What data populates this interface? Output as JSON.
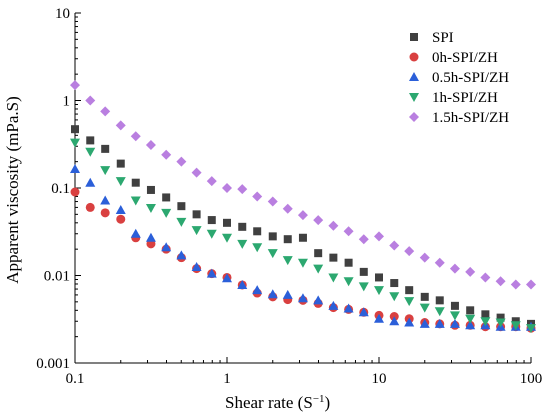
{
  "chart_data": {
    "type": "scatter",
    "xscale": "log",
    "yscale": "log",
    "xlim": [
      0.1,
      100
    ],
    "ylim": [
      0.001,
      10
    ],
    "xlabel": "Shear rate (S",
    "xlabel_sup": "−1",
    "xlabel_close": ")",
    "ylabel": "Apparent viscosity (mPa.S)",
    "xticks": [
      {
        "value": 0.1,
        "label": "0.1"
      },
      {
        "value": 1,
        "label": "1"
      },
      {
        "value": 10,
        "label": "10"
      },
      {
        "value": 100,
        "label": "100"
      }
    ],
    "yticks": [
      {
        "value": 0.001,
        "label": "0.001"
      },
      {
        "value": 0.01,
        "label": "0.01"
      },
      {
        "value": 0.1,
        "label": "0.1"
      },
      {
        "value": 1,
        "label": "1"
      },
      {
        "value": 10,
        "label": "10"
      }
    ],
    "legend_position": "top-right",
    "grid": false,
    "series": [
      {
        "name": "SPI",
        "marker": "square",
        "color": "#404040",
        "x": [
          0.1,
          0.126,
          0.158,
          0.2,
          0.251,
          0.316,
          0.398,
          0.501,
          0.631,
          0.794,
          1.0,
          1.26,
          1.58,
          2.0,
          2.51,
          3.16,
          3.98,
          5.01,
          6.31,
          7.94,
          10.0,
          12.6,
          15.8,
          20.0,
          25.1,
          31.6,
          39.8,
          50.1,
          63.1,
          79.4,
          100
        ],
        "y": [
          0.47,
          0.35,
          0.28,
          0.19,
          0.115,
          0.095,
          0.078,
          0.062,
          0.05,
          0.043,
          0.04,
          0.036,
          0.032,
          0.028,
          0.026,
          0.027,
          0.018,
          0.016,
          0.014,
          0.011,
          0.0095,
          0.0082,
          0.0068,
          0.0057,
          0.0052,
          0.0045,
          0.004,
          0.0036,
          0.0033,
          0.003,
          0.0028
        ]
      },
      {
        "name": "0h-SPI/ZH",
        "marker": "circle",
        "color": "#d94040",
        "x": [
          0.1,
          0.126,
          0.158,
          0.2,
          0.251,
          0.316,
          0.398,
          0.501,
          0.631,
          0.794,
          1.0,
          1.26,
          1.58,
          2.0,
          2.51,
          3.16,
          3.98,
          5.01,
          6.31,
          7.94,
          10.0,
          12.6,
          15.8,
          20.0,
          25.1,
          31.6,
          39.8,
          50.1,
          63.1,
          79.4,
          100
        ],
        "y": [
          0.09,
          0.06,
          0.052,
          0.044,
          0.027,
          0.023,
          0.02,
          0.016,
          0.012,
          0.0105,
          0.0095,
          0.0078,
          0.0063,
          0.0057,
          0.0053,
          0.0052,
          0.0048,
          0.0043,
          0.0041,
          0.0038,
          0.0035,
          0.0034,
          0.0032,
          0.0029,
          0.0028,
          0.0027,
          0.0027,
          0.0026,
          0.0026,
          0.0026,
          0.0025
        ]
      },
      {
        "name": "0.5h-SPI/ZH",
        "marker": "triangle-up",
        "color": "#2b5fd9",
        "x": [
          0.1,
          0.126,
          0.158,
          0.2,
          0.251,
          0.316,
          0.398,
          0.501,
          0.631,
          0.794,
          1.0,
          1.26,
          1.58,
          2.0,
          2.51,
          3.16,
          3.98,
          5.01,
          6.31,
          7.94,
          10.0,
          12.6,
          15.8,
          20.0,
          25.1,
          31.6,
          39.8,
          50.1,
          63.1,
          79.4,
          100
        ],
        "y": [
          0.165,
          0.115,
          0.072,
          0.056,
          0.03,
          0.027,
          0.021,
          0.017,
          0.0125,
          0.0105,
          0.0093,
          0.0078,
          0.0068,
          0.0061,
          0.006,
          0.0055,
          0.0052,
          0.0045,
          0.0042,
          0.0038,
          0.0032,
          0.003,
          0.0029,
          0.0028,
          0.0028,
          0.0028,
          0.0027,
          0.0027,
          0.0026,
          0.0026,
          0.0026
        ]
      },
      {
        "name": "1h-SPI/ZH",
        "marker": "triangle-down",
        "color": "#2ca870",
        "x": [
          0.1,
          0.126,
          0.158,
          0.2,
          0.251,
          0.316,
          0.398,
          0.501,
          0.631,
          0.794,
          1.0,
          1.26,
          1.58,
          2.0,
          2.51,
          3.16,
          3.98,
          5.01,
          6.31,
          7.94,
          10.0,
          12.6,
          15.8,
          20.0,
          25.1,
          31.6,
          39.8,
          50.1,
          63.1,
          79.4,
          100
        ],
        "y": [
          0.33,
          0.26,
          0.16,
          0.12,
          0.072,
          0.059,
          0.052,
          0.041,
          0.033,
          0.03,
          0.027,
          0.023,
          0.021,
          0.018,
          0.015,
          0.014,
          0.012,
          0.0095,
          0.0086,
          0.0075,
          0.0068,
          0.0058,
          0.0051,
          0.0043,
          0.0039,
          0.0035,
          0.0032,
          0.003,
          0.0029,
          0.0027,
          0.0025
        ]
      },
      {
        "name": "1.5h-SPI/ZH",
        "marker": "diamond",
        "color": "#b97fe0",
        "x": [
          0.1,
          0.126,
          0.158,
          0.2,
          0.251,
          0.316,
          0.398,
          0.501,
          0.631,
          0.794,
          1.0,
          1.26,
          1.58,
          2.0,
          2.51,
          3.16,
          3.98,
          5.01,
          6.31,
          7.94,
          10.0,
          12.6,
          15.8,
          20.0,
          25.1,
          31.6,
          39.8,
          50.1,
          63.1,
          79.4,
          100
        ],
        "y": [
          1.5,
          1.0,
          0.75,
          0.52,
          0.39,
          0.31,
          0.24,
          0.2,
          0.15,
          0.12,
          0.1,
          0.097,
          0.08,
          0.07,
          0.058,
          0.049,
          0.043,
          0.037,
          0.032,
          0.026,
          0.028,
          0.022,
          0.019,
          0.016,
          0.014,
          0.012,
          0.011,
          0.0095,
          0.0086,
          0.0079,
          0.0079
        ]
      }
    ]
  }
}
